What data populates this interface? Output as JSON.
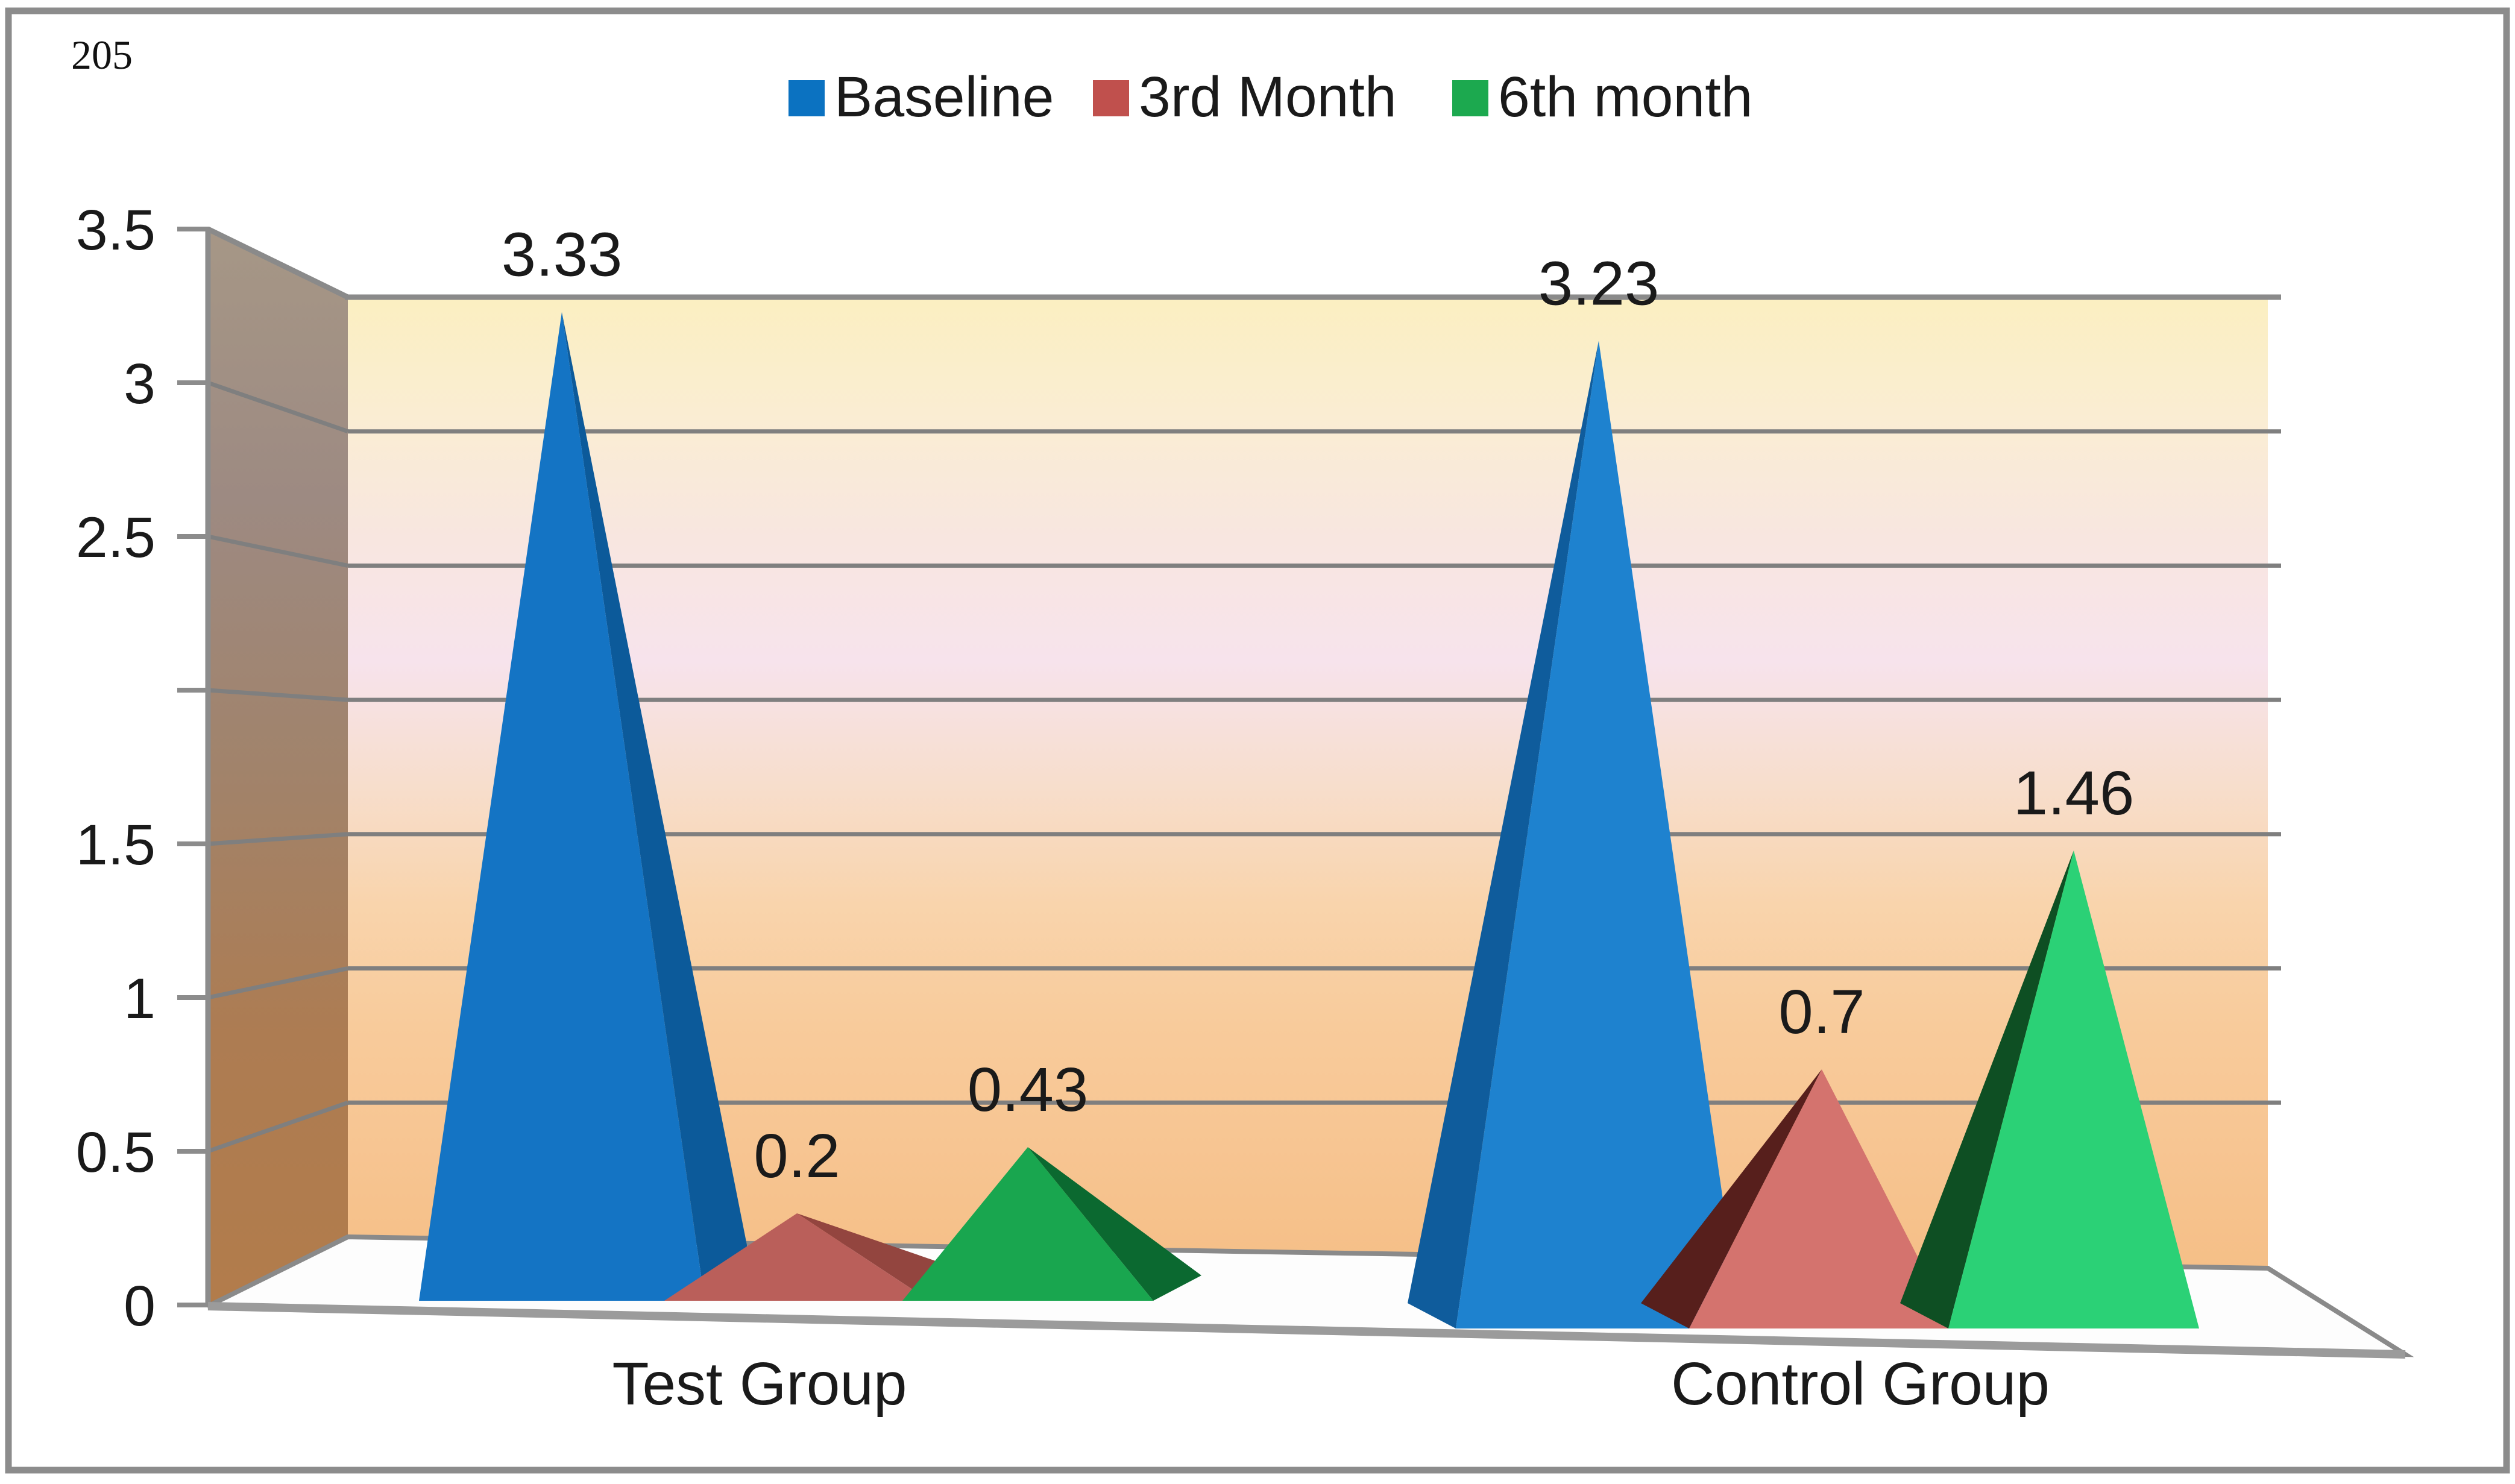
{
  "page": {
    "corner_note": "205",
    "background": "#ffffff",
    "frame_color": "#8c8c8c"
  },
  "chart_data": {
    "type": "bar",
    "variant": "3d-pyramid",
    "title": "",
    "xlabel": "",
    "ylabel": "",
    "categories": [
      "Test Group",
      "Control Group"
    ],
    "series": [
      {
        "name": "Baseline",
        "legend_color": "#0B72C1",
        "front_colors": [
          "#1474C4",
          "#1E82CF"
        ],
        "side_colors": [
          "#0C5A9A",
          "#0F5C9C"
        ],
        "values": [
          3.33,
          3.23
        ],
        "labels": [
          "3.33",
          "3.23"
        ]
      },
      {
        "name": "3rd Month",
        "legend_color": "#C0504D",
        "front_colors": [
          "#BA5F5A",
          "#D4736E"
        ],
        "side_colors": [
          "#93453F",
          "#571F1C"
        ],
        "values": [
          0.2,
          0.7
        ],
        "labels": [
          "0.2",
          "0.7"
        ]
      },
      {
        "name": "6th month",
        "legend_color": "#1CA94F",
        "front_colors": [
          "#19A64F",
          "#2BD176"
        ],
        "side_colors": [
          "#0B6930",
          "#0E4F23"
        ],
        "values": [
          0.43,
          1.46
        ],
        "labels": [
          "0.43",
          "1.46"
        ]
      }
    ],
    "ylim": [
      0,
      3.5
    ],
    "yticks": [
      3.5,
      3,
      2.5,
      2,
      1.5,
      1,
      0.5,
      0
    ],
    "ytick_labels": [
      "3.5",
      "3",
      "2.5",
      "",
      "1.5",
      "1",
      "0.5",
      "0"
    ],
    "legend_position": "top",
    "grid": true,
    "gridline_color": "#7F7F7F",
    "text_color": "#1a1a1a",
    "wall_gradient": [
      "#A69786",
      "#9D8A82",
      "#A1836B",
      "#AD7C52",
      "#B27C4B"
    ],
    "backwall_gradient": [
      "#FBEFC1",
      "#FAEDD3",
      "#F8E6E0",
      "#F7E3EC",
      "#F7DECD",
      "#F9D4AC",
      "#F8CB9B",
      "#F7C592",
      "#F5BF87"
    ],
    "floor_color": "#FDFDFD"
  }
}
